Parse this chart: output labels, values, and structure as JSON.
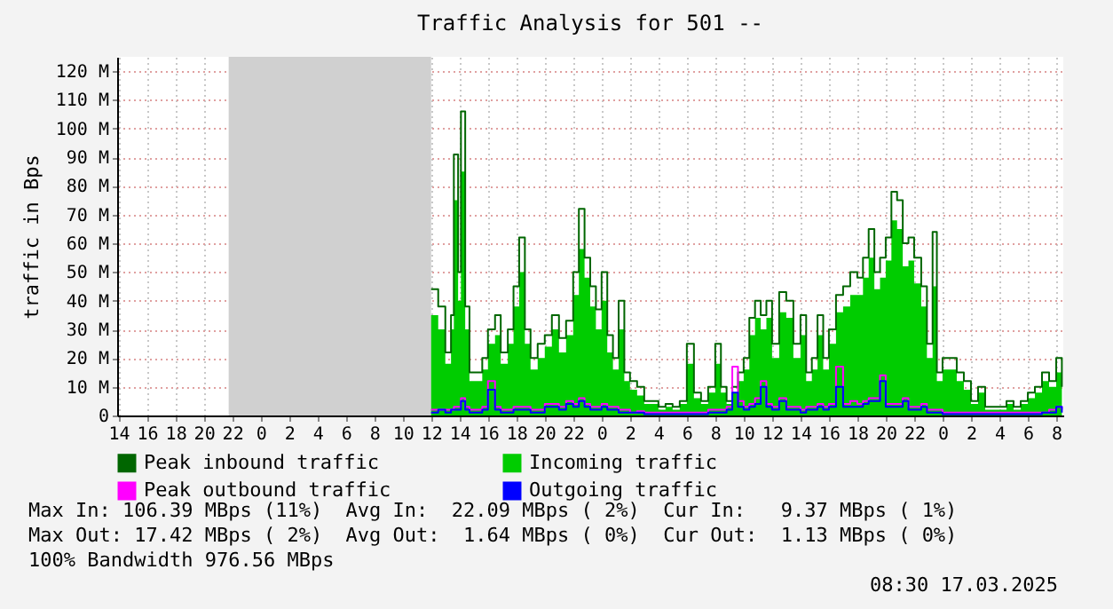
{
  "chart_data": {
    "type": "area",
    "title": "Traffic Analysis for 501 --",
    "ylabel": "traffic in Bps",
    "xlim": [
      "2025-03-14T13:54",
      "2025-03-17T08:30"
    ],
    "xticks": [
      {
        "value": "2025-03-14T14:00",
        "label": "14"
      },
      {
        "value": "2025-03-14T16:00",
        "label": "16"
      },
      {
        "value": "2025-03-14T18:00",
        "label": "18"
      },
      {
        "value": "2025-03-14T20:00",
        "label": "20"
      },
      {
        "value": "2025-03-14T22:00",
        "label": "22"
      },
      {
        "value": "2025-03-15T00:00",
        "label": "0"
      },
      {
        "value": "2025-03-15T02:00",
        "label": "2"
      },
      {
        "value": "2025-03-15T04:00",
        "label": "4"
      },
      {
        "value": "2025-03-15T06:00",
        "label": "6"
      },
      {
        "value": "2025-03-15T08:00",
        "label": "8"
      },
      {
        "value": "2025-03-15T10:00",
        "label": "10"
      },
      {
        "value": "2025-03-15T12:00",
        "label": "12"
      },
      {
        "value": "2025-03-15T14:00",
        "label": "14"
      },
      {
        "value": "2025-03-15T16:00",
        "label": "16"
      },
      {
        "value": "2025-03-15T18:00",
        "label": "18"
      },
      {
        "value": "2025-03-15T20:00",
        "label": "20"
      },
      {
        "value": "2025-03-15T22:00",
        "label": "22"
      },
      {
        "value": "2025-03-16T00:00",
        "label": "0"
      },
      {
        "value": "2025-03-16T02:00",
        "label": "2"
      },
      {
        "value": "2025-03-16T04:00",
        "label": "4"
      },
      {
        "value": "2025-03-16T06:00",
        "label": "6"
      },
      {
        "value": "2025-03-16T08:00",
        "label": "8"
      },
      {
        "value": "2025-03-16T10:00",
        "label": "10"
      },
      {
        "value": "2025-03-16T12:00",
        "label": "12"
      },
      {
        "value": "2025-03-16T14:00",
        "label": "14"
      },
      {
        "value": "2025-03-16T16:00",
        "label": "16"
      },
      {
        "value": "2025-03-16T18:00",
        "label": "18"
      },
      {
        "value": "2025-03-16T20:00",
        "label": "20"
      },
      {
        "value": "2025-03-16T22:00",
        "label": "22"
      },
      {
        "value": "2025-03-17T00:00",
        "label": "0"
      },
      {
        "value": "2025-03-17T02:00",
        "label": "2"
      },
      {
        "value": "2025-03-17T04:00",
        "label": "4"
      },
      {
        "value": "2025-03-17T06:00",
        "label": "6"
      },
      {
        "value": "2025-03-17T08:00",
        "label": "8"
      }
    ],
    "ylim": [
      0,
      125
    ],
    "yticks": [
      0,
      {
        "value": 10,
        "label": "10 M"
      },
      {
        "value": 20,
        "label": "20 M"
      },
      {
        "value": 30,
        "label": "30 M"
      },
      {
        "value": 40,
        "label": "40 M"
      },
      {
        "value": 50,
        "label": "50 M"
      },
      {
        "value": 60,
        "label": "60 M"
      },
      {
        "value": 70,
        "label": "70 M"
      },
      {
        "value": 80,
        "label": "80 M"
      },
      {
        "value": 90,
        "label": "90 M"
      },
      {
        "value": 100,
        "label": "100 M"
      },
      {
        "value": 110,
        "label": "110 M"
      },
      {
        "value": 120,
        "label": "120 M"
      }
    ],
    "grid": true,
    "legend": "bottom left",
    "bands": [
      {
        "axis": "x",
        "from": "2025-03-14T21:45",
        "to": "2025-03-15T12:00",
        "color": "#d0d0d0"
      }
    ],
    "x": [
      "2025-03-15T12:00",
      "2025-03-15T12:30",
      "2025-03-15T13:00",
      "2025-03-15T13:24",
      "2025-03-15T13:36",
      "2025-03-15T13:54",
      "2025-03-15T14:06",
      "2025-03-15T14:24",
      "2025-03-15T14:42",
      "2025-03-15T15:12",
      "2025-03-15T15:36",
      "2025-03-15T16:00",
      "2025-03-15T16:30",
      "2025-03-15T16:54",
      "2025-03-15T17:24",
      "2025-03-15T17:48",
      "2025-03-15T18:12",
      "2025-03-15T18:36",
      "2025-03-15T19:00",
      "2025-03-15T19:30",
      "2025-03-15T20:00",
      "2025-03-15T20:30",
      "2025-03-15T21:00",
      "2025-03-15T21:30",
      "2025-03-15T22:00",
      "2025-03-15T22:24",
      "2025-03-15T22:48",
      "2025-03-15T23:12",
      "2025-03-15T23:36",
      "2025-03-16T00:00",
      "2025-03-16T00:24",
      "2025-03-16T00:48",
      "2025-03-16T01:12",
      "2025-03-16T01:36",
      "2025-03-16T02:00",
      "2025-03-16T02:30",
      "2025-03-16T03:00",
      "2025-03-16T03:30",
      "2025-03-16T04:00",
      "2025-03-16T04:30",
      "2025-03-16T05:00",
      "2025-03-16T05:30",
      "2025-03-16T06:00",
      "2025-03-16T06:30",
      "2025-03-16T07:00",
      "2025-03-16T07:30",
      "2025-03-16T08:00",
      "2025-03-16T08:24",
      "2025-03-16T08:48",
      "2025-03-16T09:12",
      "2025-03-16T09:36",
      "2025-03-16T10:00",
      "2025-03-16T10:24",
      "2025-03-16T10:48",
      "2025-03-16T11:12",
      "2025-03-16T11:36",
      "2025-03-16T12:00",
      "2025-03-16T12:30",
      "2025-03-16T13:00",
      "2025-03-16T13:30",
      "2025-03-16T14:00",
      "2025-03-16T14:24",
      "2025-03-16T14:48",
      "2025-03-16T15:12",
      "2025-03-16T15:36",
      "2025-03-16T16:00",
      "2025-03-16T16:30",
      "2025-03-16T17:00",
      "2025-03-16T17:30",
      "2025-03-16T18:00",
      "2025-03-16T18:24",
      "2025-03-16T18:48",
      "2025-03-16T19:12",
      "2025-03-16T19:36",
      "2025-03-16T20:00",
      "2025-03-16T20:24",
      "2025-03-16T20:48",
      "2025-03-16T21:12",
      "2025-03-16T21:36",
      "2025-03-16T22:00",
      "2025-03-16T22:30",
      "2025-03-16T22:54",
      "2025-03-16T23:18",
      "2025-03-16T23:36",
      "2025-03-17T00:00",
      "2025-03-17T00:30",
      "2025-03-17T01:00",
      "2025-03-17T01:30",
      "2025-03-17T02:00",
      "2025-03-17T02:30",
      "2025-03-17T03:00",
      "2025-03-17T03:30",
      "2025-03-17T04:00",
      "2025-03-17T04:30",
      "2025-03-17T05:00",
      "2025-03-17T05:30",
      "2025-03-17T06:00",
      "2025-03-17T06:30",
      "2025-03-17T07:00",
      "2025-03-17T07:30",
      "2025-03-17T08:00",
      "2025-03-17T08:24"
    ],
    "series": [
      {
        "name": "Peak inbound traffic",
        "type": "step",
        "color": "#006600",
        "values": [
          44,
          38,
          22,
          35,
          91,
          50,
          106,
          38,
          15,
          15,
          20,
          30,
          35,
          22,
          30,
          45,
          62,
          30,
          20,
          25,
          28,
          35,
          27,
          33,
          50,
          72,
          55,
          45,
          37,
          50,
          28,
          20,
          40,
          15,
          12,
          10,
          5,
          5,
          3,
          4,
          3,
          5,
          25,
          8,
          5,
          10,
          25,
          10,
          5,
          10,
          15,
          20,
          34,
          40,
          35,
          40,
          25,
          43,
          40,
          25,
          35,
          15,
          20,
          35,
          20,
          30,
          42,
          45,
          50,
          48,
          55,
          65,
          50,
          55,
          62,
          78,
          75,
          60,
          62,
          55,
          45,
          25,
          64,
          15,
          20,
          20,
          15,
          12,
          5,
          10,
          3,
          3,
          3,
          5,
          3,
          5,
          8,
          10,
          15,
          12,
          20,
          10
        ]
      },
      {
        "name": "Incoming traffic",
        "type": "area",
        "color": "#00cc00",
        "values": [
          35,
          30,
          18,
          30,
          75,
          40,
          85,
          30,
          12,
          12,
          16,
          25,
          28,
          18,
          25,
          38,
          50,
          25,
          16,
          20,
          24,
          30,
          22,
          28,
          42,
          58,
          48,
          38,
          30,
          40,
          22,
          16,
          30,
          12,
          9,
          7,
          4,
          4,
          2,
          3,
          2,
          4,
          18,
          6,
          4,
          8,
          18,
          8,
          4,
          8,
          12,
          16,
          28,
          34,
          30,
          34,
          20,
          36,
          34,
          20,
          28,
          12,
          16,
          28,
          16,
          25,
          36,
          38,
          42,
          42,
          48,
          55,
          44,
          48,
          54,
          68,
          65,
          52,
          54,
          46,
          38,
          20,
          45,
          12,
          16,
          16,
          12,
          9,
          4,
          8,
          2,
          2,
          2,
          4,
          2,
          4,
          6,
          8,
          12,
          10,
          15,
          9
        ]
      },
      {
        "name": "Peak outbound traffic",
        "type": "step",
        "color": "#ff00ff",
        "values": [
          2,
          2,
          2,
          2,
          3,
          3,
          6,
          3,
          2,
          2,
          3,
          12,
          3,
          2,
          2,
          3,
          3,
          3,
          2,
          2,
          4,
          4,
          3,
          5,
          4,
          6,
          4,
          3,
          3,
          4,
          3,
          3,
          2,
          2,
          1,
          1.5,
          1,
          1,
          1,
          1,
          1,
          1,
          1,
          1,
          1,
          2,
          2,
          2,
          3,
          17,
          5,
          3,
          4,
          6,
          12,
          4,
          3,
          6,
          3,
          3,
          2,
          3,
          3,
          4,
          3,
          4,
          17,
          4,
          5,
          4,
          5,
          6,
          6,
          14,
          4,
          4,
          4,
          6,
          3,
          3,
          4,
          2,
          2,
          2,
          1,
          1,
          1,
          1,
          1,
          1,
          1,
          1,
          1,
          1,
          1,
          1,
          1,
          1,
          1,
          2,
          3,
          2
        ]
      },
      {
        "name": "Outgoing traffic",
        "type": "step",
        "color": "#0000ff",
        "values": [
          1,
          2,
          1,
          2,
          2,
          2,
          5,
          2,
          1,
          1,
          2,
          9,
          2,
          1,
          1,
          2,
          2,
          2,
          1,
          1,
          3,
          3,
          2,
          4,
          3,
          5,
          3,
          2,
          2,
          3,
          2,
          2,
          1,
          1,
          1,
          1,
          0.5,
          0.5,
          0.5,
          0.5,
          0.5,
          0.5,
          0.5,
          0.5,
          0.5,
          1,
          1,
          1,
          2,
          8,
          3,
          2,
          3,
          4,
          10,
          3,
          2,
          5,
          2,
          2,
          1,
          2,
          2,
          3,
          2,
          3,
          10,
          3,
          3,
          3,
          4,
          5,
          5,
          12,
          3,
          3,
          3,
          5,
          2,
          2,
          3,
          1,
          1,
          1,
          0.5,
          0.5,
          0.5,
          0.5,
          0.5,
          0.5,
          0.5,
          0.5,
          0.5,
          0.5,
          0.5,
          0.5,
          0.5,
          0.5,
          1,
          1,
          3,
          1
        ]
      }
    ],
    "annotations": [
      "Max In: 106.39 MBps (11%)  Avg In:  22.09 MBps ( 2%)  Cur In:   9.37 MBps ( 1%)",
      "Max Out: 17.42 MBps ( 2%)  Avg Out:  1.64 MBps ( 0%)  Cur Out:  1.13 MBps ( 0%)",
      "100% Bandwidth 976.56 MBps",
      "08:30 17.03.2025"
    ]
  }
}
